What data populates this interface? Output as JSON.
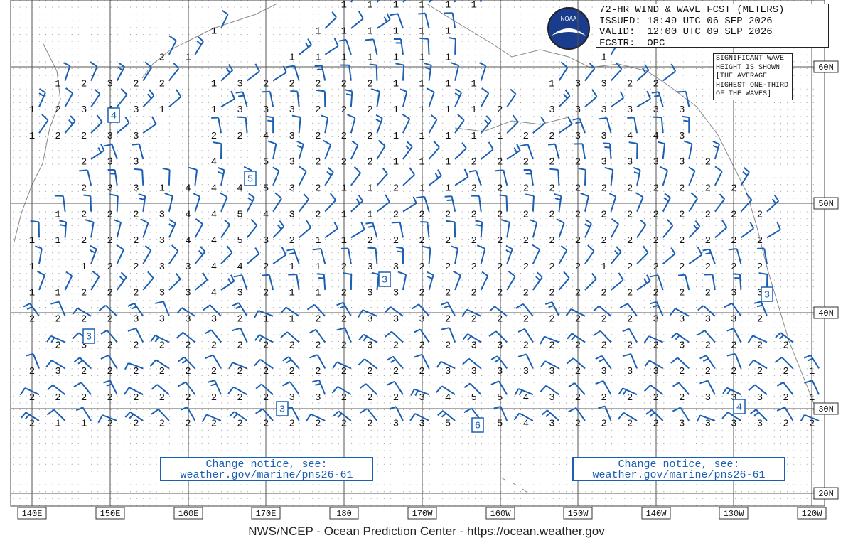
{
  "header": {
    "lines": [
      "72-HR WIND & WAVE FCST (METERS)",
      "ISSUED: 18:49 UTC 06 SEP 2026",
      "VALID:  12:00 UTC 09 SEP 2026",
      "FCSTR:  OPC"
    ]
  },
  "logo_text": "NOAA",
  "note": {
    "lines": [
      "SIGNIFICANT WAVE",
      "HEIGHT IS SHOWN",
      "[THE AVERAGE",
      "HIGHEST ONE-THIRD",
      "OF THE WAVES]"
    ]
  },
  "notices": [
    {
      "line1": "Change notice, see:",
      "line2": "weather.gov/marine/pns26-61"
    },
    {
      "line1": "Change notice, see:",
      "line2": "weather.gov/marine/pns26-61"
    }
  ],
  "longitude_labels": [
    "140E",
    "150E",
    "160E",
    "170E",
    "180",
    "170W",
    "160W",
    "150W",
    "140W",
    "130W",
    "120W"
  ],
  "latitude_labels": [
    "60N",
    "50N",
    "40N",
    "30N",
    "20N"
  ],
  "wave_heights": {
    "rows": [
      [
        null,
        null,
        null,
        null,
        null,
        null,
        null,
        null,
        null,
        null,
        null,
        null,
        1,
        1,
        1,
        1,
        1,
        1,
        null,
        null,
        null,
        null,
        null,
        null,
        null,
        null,
        null,
        null,
        null,
        null,
        null
      ],
      [
        null,
        null,
        null,
        null,
        null,
        null,
        null,
        1,
        null,
        null,
        null,
        1,
        1,
        1,
        1,
        1,
        1,
        null,
        null,
        null,
        null,
        null,
        null,
        null,
        null,
        null,
        null,
        null,
        null,
        null,
        null
      ],
      [
        null,
        null,
        null,
        null,
        null,
        2,
        1,
        null,
        null,
        null,
        1,
        1,
        1,
        1,
        1,
        1,
        1,
        null,
        null,
        null,
        null,
        null,
        1,
        null,
        null,
        null,
        null,
        null,
        null,
        null,
        null
      ],
      [
        null,
        1,
        2,
        3,
        2,
        2,
        null,
        1,
        3,
        2,
        2,
        2,
        2,
        2,
        1,
        1,
        1,
        1,
        null,
        null,
        1,
        3,
        3,
        2,
        2,
        null,
        null,
        null,
        null,
        null,
        null
      ],
      [
        1,
        2,
        3,
        4,
        3,
        1,
        null,
        1,
        3,
        3,
        3,
        2,
        2,
        2,
        1,
        1,
        1,
        1,
        2,
        null,
        3,
        3,
        3,
        3,
        3,
        3,
        null,
        null,
        null,
        null,
        null
      ],
      [
        1,
        2,
        2,
        3,
        3,
        null,
        null,
        2,
        2,
        4,
        3,
        2,
        2,
        2,
        1,
        1,
        1,
        1,
        1,
        2,
        2,
        3,
        3,
        4,
        4,
        3,
        null,
        null,
        null,
        null,
        null
      ],
      [
        null,
        null,
        2,
        3,
        3,
        null,
        null,
        4,
        null,
        5,
        3,
        2,
        2,
        2,
        1,
        1,
        1,
        2,
        2,
        2,
        2,
        2,
        3,
        3,
        3,
        3,
        2,
        null,
        null,
        null,
        null
      ],
      [
        null,
        null,
        2,
        3,
        3,
        1,
        4,
        4,
        4,
        5,
        3,
        2,
        1,
        1,
        2,
        1,
        1,
        2,
        2,
        2,
        2,
        2,
        2,
        2,
        2,
        2,
        2,
        2,
        null,
        null,
        null
      ],
      [
        null,
        1,
        2,
        2,
        2,
        3,
        4,
        4,
        5,
        4,
        3,
        2,
        1,
        1,
        2,
        2,
        2,
        2,
        2,
        2,
        2,
        2,
        2,
        2,
        2,
        2,
        2,
        2,
        2,
        null,
        null
      ],
      [
        1,
        1,
        2,
        2,
        2,
        3,
        4,
        4,
        5,
        3,
        2,
        1,
        1,
        2,
        2,
        2,
        2,
        2,
        2,
        2,
        2,
        2,
        2,
        2,
        2,
        2,
        2,
        2,
        2,
        null,
        null
      ],
      [
        1,
        null,
        1,
        2,
        2,
        3,
        3,
        4,
        4,
        2,
        1,
        1,
        2,
        3,
        3,
        2,
        2,
        2,
        2,
        2,
        2,
        2,
        1,
        2,
        2,
        2,
        2,
        2,
        2,
        null,
        null
      ],
      [
        1,
        1,
        2,
        2,
        2,
        3,
        3,
        4,
        3,
        2,
        1,
        1,
        2,
        3,
        3,
        2,
        2,
        2,
        2,
        2,
        2,
        2,
        2,
        2,
        2,
        2,
        2,
        3,
        3,
        null,
        null
      ],
      [
        2,
        2,
        2,
        2,
        3,
        3,
        3,
        3,
        2,
        1,
        1,
        2,
        2,
        3,
        3,
        3,
        2,
        2,
        2,
        2,
        2,
        2,
        2,
        2,
        3,
        3,
        3,
        3,
        2,
        null,
        null
      ],
      [
        null,
        2,
        3,
        2,
        2,
        2,
        2,
        2,
        2,
        2,
        2,
        2,
        2,
        3,
        2,
        2,
        2,
        3,
        3,
        2,
        2,
        2,
        2,
        2,
        2,
        3,
        2,
        2,
        2,
        2,
        null
      ],
      [
        2,
        3,
        2,
        2,
        2,
        2,
        2,
        2,
        2,
        2,
        2,
        2,
        2,
        2,
        2,
        2,
        3,
        3,
        3,
        3,
        3,
        2,
        3,
        3,
        3,
        2,
        2,
        2,
        2,
        2,
        1
      ],
      [
        2,
        2,
        2,
        2,
        2,
        2,
        2,
        2,
        2,
        2,
        3,
        3,
        2,
        2,
        2,
        3,
        4,
        5,
        5,
        4,
        3,
        2,
        2,
        2,
        2,
        2,
        3,
        3,
        3,
        2,
        1
      ],
      [
        2,
        1,
        1,
        2,
        2,
        2,
        2,
        2,
        2,
        2,
        2,
        2,
        2,
        2,
        3,
        3,
        5,
        6,
        5,
        4,
        3,
        2,
        2,
        2,
        2,
        3,
        3,
        3,
        3,
        2,
        2
      ]
    ]
  },
  "maxima": [
    4,
    5,
    3,
    3,
    3,
    3,
    4,
    6
  ],
  "footer": "NWS/NCEP - Ocean Prediction Center - https://ocean.weather.gov"
}
